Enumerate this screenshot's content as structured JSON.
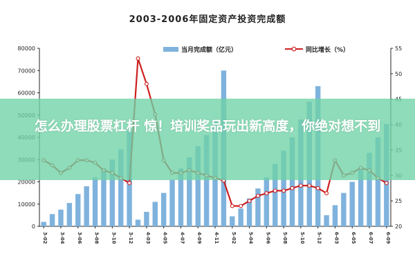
{
  "chart_data": {
    "type": "bar+line",
    "title": "2003-2006年固定资产投资完成额",
    "legend": [
      {
        "name": "当月完成额（亿元）",
        "kind": "bar",
        "color": "#7fb3dd"
      },
      {
        "name": "同比增长（%）",
        "kind": "line",
        "color": "#cc1f1f"
      }
    ],
    "legend_position": "top",
    "months": [
      "3-02",
      "3-03",
      "3-04",
      "3-05",
      "3-06",
      "3-07",
      "3-08",
      "3-09",
      "3-10",
      "3-11",
      "3-12",
      "4-02",
      "4-03",
      "4-04",
      "4-05",
      "4-06",
      "4-07",
      "4-08",
      "4-09",
      "4-10",
      "4-11",
      "4-12",
      "5-02",
      "5-03",
      "5-04",
      "5-05",
      "5-06",
      "5-07",
      "5-08",
      "5-09",
      "5-10",
      "5-11",
      "5-12",
      "6-02",
      "6-03",
      "6-04",
      "6-05",
      "6-06",
      "6-07",
      "6-08",
      "6-09"
    ],
    "x_tick_labels": [
      "3-02",
      "3-04",
      "3-06",
      "3-08",
      "3-10",
      "3-12",
      "4-03",
      "4-05",
      "4-07",
      "4-09",
      "4-11",
      "5-02",
      "5-04",
      "5-06",
      "5-08",
      "5-10",
      "5-12",
      "6-03",
      "6-05",
      "6-07",
      "6-09"
    ],
    "bar_values": [
      2000,
      5500,
      7500,
      10500,
      14500,
      18000,
      22000,
      26000,
      30000,
      34500,
      43000,
      3000,
      6500,
      11000,
      15000,
      21000,
      26000,
      31000,
      36000,
      41000,
      48000,
      70000,
      4500,
      8000,
      12500,
      17000,
      22000,
      28000,
      34000,
      40000,
      48000,
      56000,
      63000,
      5000,
      9500,
      15000,
      20000,
      26000,
      33000,
      40000,
      46000
    ],
    "growth_values": [
      33,
      32,
      30.5,
      31.5,
      33,
      33,
      32.5,
      31,
      30.5,
      29.5,
      28.5,
      53,
      48,
      42,
      33,
      30.5,
      30.5,
      31,
      30.5,
      30,
      29.5,
      29,
      24,
      24,
      25,
      26,
      26.5,
      27,
      27,
      27.5,
      28,
      28,
      27.5,
      26.5,
      33,
      30,
      30.5,
      31.5,
      31,
      29.5,
      28.5
    ],
    "y_left": {
      "min": 0,
      "max": 80000,
      "ticks": [
        "0",
        "10000",
        "20000",
        "30000",
        "40000",
        "50000",
        "60000",
        "70000",
        "80000"
      ]
    },
    "y_right": {
      "min": 20,
      "max": 55,
      "ticks": [
        "20",
        "25",
        "30",
        "35",
        "40",
        "45",
        "50",
        "55"
      ]
    }
  },
  "overlay": {
    "text": "怎么办理股票杠杆 惊！培训奖品玩出新高度，你绝对想不到"
  }
}
